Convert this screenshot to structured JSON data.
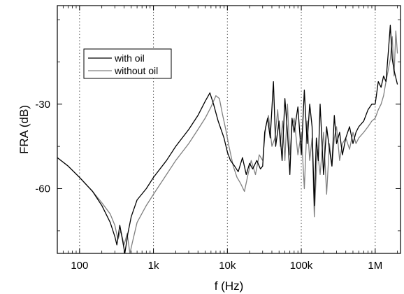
{
  "chart_data": {
    "type": "line",
    "title": "",
    "xlabel": "f (Hz)",
    "ylabel": "FRA (dB)",
    "xscale": "log",
    "xlim": [
      50,
      2200000
    ],
    "ylim": [
      -83,
      5
    ],
    "grid": "vertical dotted lines at decades",
    "legend_position": "upper-left",
    "x_ticks": [
      100,
      1000,
      10000,
      100000,
      1000000
    ],
    "x_tick_labels": [
      "100",
      "1k",
      "10k",
      "100k",
      "1M"
    ],
    "y_ticks": [
      -30,
      -60
    ],
    "y_tick_labels": [
      "-30",
      "-60"
    ],
    "series": [
      {
        "name": "with oil",
        "color": "#000000",
        "x": [
          50,
          70,
          100,
          150,
          200,
          260,
          300,
          320,
          350,
          380,
          410,
          450,
          500,
          600,
          800,
          1000,
          1500,
          2000,
          3000,
          4000,
          5000,
          5800,
          6500,
          7500,
          9000,
          10000,
          11000,
          12500,
          14000,
          16000,
          18000,
          20000,
          22000,
          25000,
          28000,
          30000,
          32000,
          35000,
          38000,
          42000,
          45000,
          50000,
          55000,
          60000,
          65000,
          70000,
          75000,
          80000,
          90000,
          100000,
          110000,
          120000,
          130000,
          140000,
          150000,
          160000,
          170000,
          180000,
          200000,
          220000,
          240000,
          260000,
          280000,
          300000,
          330000,
          360000,
          400000,
          450000,
          500000,
          550000,
          600000,
          700000,
          800000,
          900000,
          1000000,
          1100000,
          1200000,
          1300000,
          1400000,
          1500000,
          1600000,
          1700000,
          1800000,
          2000000
        ],
        "y": [
          -49,
          -52,
          -56,
          -61,
          -66,
          -72,
          -77,
          -80,
          -73,
          -78,
          -83,
          -76,
          -70,
          -64,
          -60,
          -56,
          -50,
          -45,
          -39,
          -34,
          -29,
          -26,
          -30,
          -36,
          -42,
          -47,
          -50,
          -52,
          -54,
          -49,
          -55,
          -51,
          -53,
          -50,
          -53,
          -52,
          -40,
          -35,
          -42,
          -22,
          -45,
          -36,
          -50,
          -28,
          -40,
          -55,
          -35,
          -40,
          -31,
          -48,
          -25,
          -44,
          -30,
          -38,
          -66,
          -42,
          -50,
          -30,
          -55,
          -38,
          -46,
          -52,
          -34,
          -44,
          -40,
          -48,
          -42,
          -38,
          -44,
          -40,
          -38,
          -36,
          -32,
          -30,
          -30,
          -22,
          -24,
          -20,
          -22,
          -12,
          -2,
          -14,
          -18,
          -23
        ]
      },
      {
        "name": "without oil",
        "color": "#808080",
        "x": [
          50,
          70,
          100,
          150,
          200,
          260,
          300,
          330,
          360,
          400,
          440,
          480,
          520,
          600,
          800,
          1000,
          1500,
          2000,
          3000,
          4000,
          5000,
          6000,
          7000,
          7800,
          8500,
          9500,
          10500,
          12000,
          13500,
          15000,
          17000,
          19000,
          21000,
          24000,
          27000,
          30000,
          33000,
          36000,
          40000,
          44000,
          48000,
          52000,
          56000,
          60000,
          65000,
          70000,
          75000,
          80000,
          90000,
          100000,
          110000,
          120000,
          130000,
          140000,
          150000,
          165000,
          180000,
          200000,
          220000,
          240000,
          260000,
          280000,
          300000,
          330000,
          360000,
          400000,
          450000,
          500000,
          550000,
          600000,
          700000,
          800000,
          900000,
          1000000,
          1100000,
          1200000,
          1300000,
          1400000,
          1500000,
          1600000,
          1700000,
          1800000,
          1900000,
          2000000
        ],
        "y": [
          -49,
          -52,
          -56,
          -61,
          -65,
          -69,
          -73,
          -78,
          -75,
          -80,
          -76,
          -83,
          -79,
          -72,
          -66,
          -62,
          -55,
          -50,
          -44,
          -39,
          -35,
          -31,
          -27,
          -28,
          -33,
          -39,
          -45,
          -52,
          -56,
          -58,
          -61,
          -55,
          -50,
          -55,
          -48,
          -50,
          -38,
          -34,
          -45,
          -42,
          -32,
          -45,
          -36,
          -50,
          -30,
          -48,
          -38,
          -35,
          -48,
          -40,
          -60,
          -36,
          -50,
          -42,
          -70,
          -46,
          -55,
          -40,
          -62,
          -44,
          -52,
          -42,
          -38,
          -50,
          -44,
          -42,
          -46,
          -40,
          -44,
          -42,
          -40,
          -38,
          -36,
          -35,
          -32,
          -30,
          -27,
          -22,
          -18,
          -14,
          -6,
          -20,
          -4,
          -12
        ]
      }
    ]
  }
}
